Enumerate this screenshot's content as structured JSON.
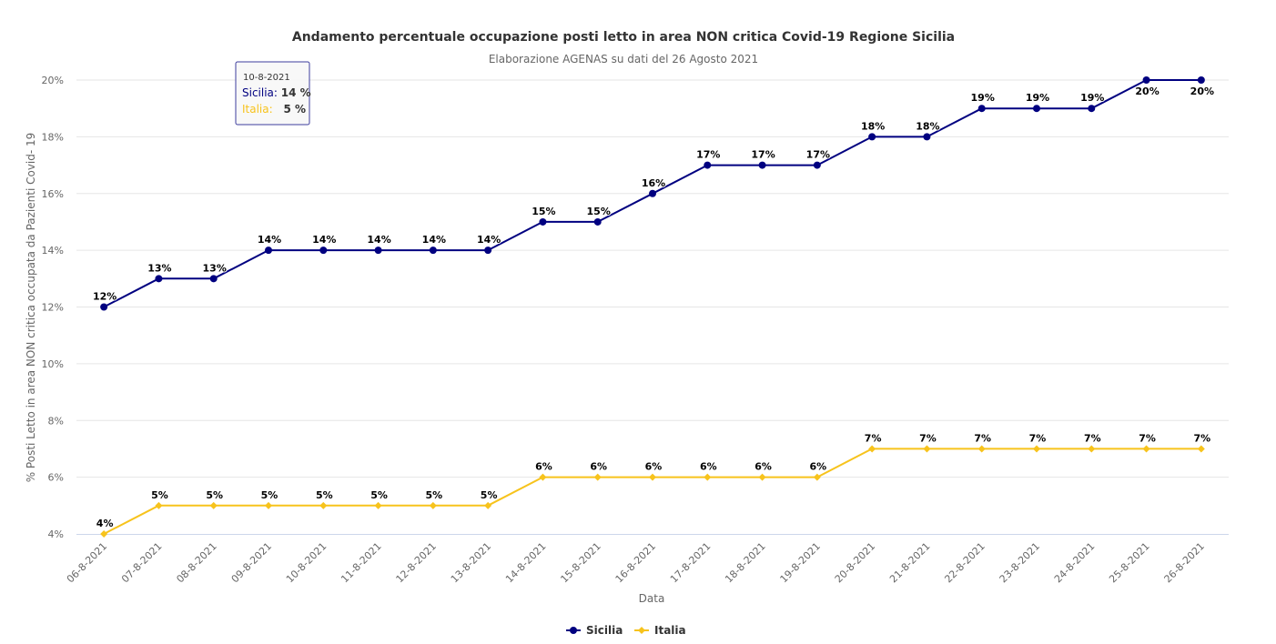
{
  "chart_data": {
    "type": "line",
    "title": "Andamento percentuale occupazione posti letto in area NON critica Covid-19 Regione Sicilia",
    "subtitle": "Elaborazione AGENAS su dati del 26 Agosto 2021",
    "xlabel": "Data",
    "ylabel": "% Posti Letto in area NON critica occupata da Pazienti Covid- 19",
    "ylim": [
      4,
      20
    ],
    "yticks": [
      4,
      6,
      8,
      10,
      12,
      14,
      16,
      18,
      20
    ],
    "ytick_suffix": "%",
    "grid": true,
    "legend_position": "bottom-center",
    "categories": [
      "06-8-2021",
      "07-8-2021",
      "08-8-2021",
      "09-8-2021",
      "10-8-2021",
      "11-8-2021",
      "12-8-2021",
      "13-8-2021",
      "14-8-2021",
      "15-8-2021",
      "16-8-2021",
      "17-8-2021",
      "18-8-2021",
      "19-8-2021",
      "20-8-2021",
      "21-8-2021",
      "22-8-2021",
      "23-8-2021",
      "24-8-2021",
      "25-8-2021",
      "26-8-2021"
    ],
    "series": [
      {
        "name": "Sicilia",
        "color": "#000080",
        "marker": "circle",
        "values": [
          12,
          13,
          13,
          14,
          14,
          14,
          14,
          14,
          15,
          15,
          16,
          17,
          17,
          17,
          18,
          18,
          19,
          19,
          19,
          20,
          20
        ]
      },
      {
        "name": "Italia",
        "color": "#f7c31c",
        "marker": "diamond",
        "values": [
          4,
          5,
          5,
          5,
          5,
          5,
          5,
          5,
          6,
          6,
          6,
          6,
          6,
          6,
          7,
          7,
          7,
          7,
          7,
          7,
          7
        ]
      }
    ],
    "tooltip": {
      "header": "10-8-2021",
      "rows": [
        {
          "label": "Sicilia:",
          "value": "14 %"
        },
        {
          "label": "Italia:",
          "value": "5 %"
        }
      ]
    }
  }
}
